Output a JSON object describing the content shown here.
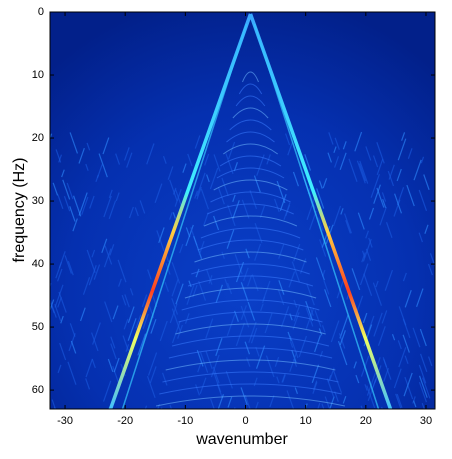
{
  "chart_data": {
    "type": "heatmap",
    "xlabel": "wavenumber",
    "ylabel": "frequency (Hz)",
    "xlim": [
      -32.5,
      31.5
    ],
    "xticks": [
      -30,
      -20,
      -10,
      0,
      10,
      20,
      30
    ],
    "ylim": [
      0,
      63
    ],
    "yticks": [
      0,
      10,
      20,
      30,
      40,
      50,
      60
    ],
    "y_reversed": true
  }
}
